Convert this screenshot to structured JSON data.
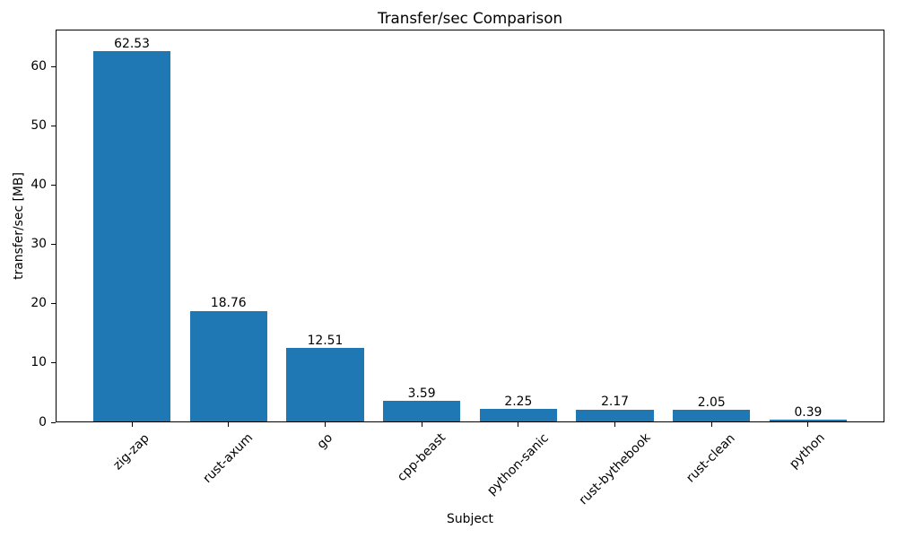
{
  "chart_data": {
    "type": "bar",
    "title": "Transfer/sec Comparison",
    "xlabel": "Subject",
    "ylabel": "transfer/sec [MB]",
    "categories": [
      "zig-zap",
      "rust-axum",
      "go",
      "cpp-beast",
      "python-sanic",
      "rust-bythebook",
      "rust-clean",
      "python"
    ],
    "values": [
      62.53,
      18.76,
      12.51,
      3.59,
      2.25,
      2.17,
      2.05,
      0.39
    ],
    "bar_value_labels": [
      "62.53",
      "18.76",
      "12.51",
      "3.59",
      "2.25",
      "2.17",
      "2.05",
      "0.39"
    ],
    "yticks": [
      0,
      10,
      20,
      30,
      40,
      50,
      60
    ],
    "ylim": [
      0,
      66.2
    ],
    "xtick_rotation_deg": 45,
    "bar_color": "#1f77b4",
    "axis_color": "#000000",
    "text_color": "#000000",
    "background_color": "#ffffff",
    "grid": false,
    "legend": "none"
  }
}
